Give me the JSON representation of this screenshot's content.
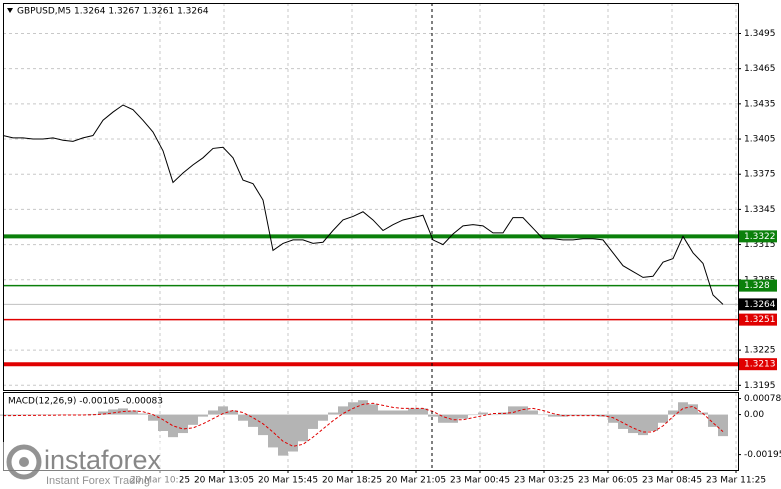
{
  "chart_data": {
    "type": "line",
    "title": "GBPUSD,M5  1.3264 1.3267 1.3261 1.3264",
    "color": "#000000",
    "values": [
      1.3408,
      1.3406,
      1.3406,
      1.3405,
      1.3405,
      1.3406,
      1.3404,
      1.3403,
      1.3406,
      1.3408,
      1.3421,
      1.3428,
      1.3434,
      1.343,
      1.3421,
      1.3411,
      1.3395,
      1.3368,
      1.3376,
      1.3383,
      1.3389,
      1.3397,
      1.3398,
      1.3389,
      1.337,
      1.3367,
      1.3353,
      1.331,
      1.3316,
      1.3319,
      1.3319,
      1.3316,
      1.3317,
      1.3327,
      1.3336,
      1.3339,
      1.3343,
      1.3336,
      1.3327,
      1.3332,
      1.3336,
      1.3338,
      1.334,
      1.3319,
      1.3315,
      1.3324,
      1.3331,
      1.3332,
      1.3331,
      1.3325,
      1.3325,
      1.3338,
      1.3338,
      1.3329,
      1.332,
      1.332,
      1.3319,
      1.3319,
      1.332,
      1.332,
      1.3319,
      1.3308,
      1.3297,
      1.3292,
      1.3287,
      1.3288,
      1.33,
      1.3303,
      1.3322,
      1.3308,
      1.3299,
      1.3272,
      1.3264
    ],
    "x_labels": [
      "20 Mar 10:25",
      "20 Mar 13:05",
      "20 Mar 15:45",
      "20 Mar 18:25",
      "20 Mar 21:05",
      "23 Mar 00:45",
      "23 Mar 03:25",
      "23 Mar 06:05",
      "23 Mar 08:45",
      "23 Mar 11:25"
    ],
    "ylim": [
      1.3191,
      1.3521
    ],
    "yticks": [
      1.3495,
      1.3465,
      1.3435,
      1.3405,
      1.3375,
      1.3345,
      1.3315,
      1.3285,
      1.3225,
      1.3195
    ],
    "grid": true,
    "current_price": 1.3264,
    "levels": [
      {
        "value": 1.3322,
        "color": "#0b800b",
        "style": "thick"
      },
      {
        "value": 1.328,
        "color": "#0b800b",
        "style": "thin"
      },
      {
        "value": 1.3251,
        "color": "#e00000",
        "style": "thin"
      },
      {
        "value": 1.3213,
        "color": "#e00000",
        "style": "thick"
      }
    ],
    "macd": {
      "label": "MACD(12,26,9) -0.00105 -0.00083",
      "histogram_color": "#b4b4b4",
      "signal_color": "#e00000",
      "histogram": [
        -5e-05,
        -4e-05,
        -3e-05,
        -2e-05,
        -1e-05,
        -1e-05,
        -1e-05,
        -2e-05,
        0,
        3e-05,
        0.00015,
        0.00025,
        0.0003,
        0.0002,
        5e-05,
        -0.0003,
        -0.0008,
        -0.0011,
        -0.0009,
        -0.0005,
        -0.0001,
        0.0002,
        0.0004,
        0.0002,
        -0.0003,
        -0.0006,
        -0.001,
        -0.0016,
        -0.002,
        -0.0018,
        -0.0013,
        -0.0007,
        -0.0003,
        0.0001,
        0.0004,
        0.0006,
        0.0007,
        0.0005,
        0.0002,
        0.0002,
        0.0002,
        0.0003,
        0.0003,
        -0.0001,
        -0.0004,
        -0.0004,
        -0.0002,
        0,
        0.0001,
        0,
        0.0001,
        0.0004,
        0.0004,
        0.0002,
        0,
        -0.0001,
        -0.0001,
        -5e-05,
        -5e-05,
        -5e-05,
        -0.0001,
        -0.0004,
        -0.0007,
        -0.0009,
        -0.001,
        -0.0008,
        -0.0004,
        0.0002,
        0.0006,
        0.0005,
        0.0001,
        -0.0006,
        -0.00105
      ],
      "signal": [
        -5e-05,
        -5e-05,
        -4e-05,
        -4e-05,
        -3e-05,
        -3e-05,
        -2e-05,
        -2e-05,
        -2e-05,
        -1e-05,
        2e-05,
        8e-05,
        0.00015,
        0.00018,
        0.00014,
        0,
        -0.00025,
        -0.00055,
        -0.0007,
        -0.00065,
        -0.00045,
        -0.0002,
        5e-05,
        0.0002,
        0.0001,
        -0.00015,
        -0.00045,
        -0.00085,
        -0.0013,
        -0.00155,
        -0.00145,
        -0.0011,
        -0.0007,
        -0.0003,
        5e-05,
        0.0003,
        0.0005,
        0.00055,
        0.00045,
        0.00035,
        0.0003,
        0.0003,
        0.0003,
        0.00015,
        -0.0001,
        -0.00025,
        -0.00025,
        -0.00015,
        -5e-05,
        5e-05,
        5e-05,
        0.0001,
        0.00025,
        0.0003,
        0.0002,
        5e-05,
        -5e-05,
        -5e-05,
        -5e-05,
        -5e-05,
        -5e-05,
        -0.00015,
        -0.0004,
        -0.00065,
        -0.00085,
        -0.00085,
        -0.00055,
        -0.0001,
        0.0003,
        0.0004,
        5e-05,
        -0.0004,
        -0.00083
      ],
      "ylim": [
        -0.0027,
        0.0011
      ],
      "yticks": [
        0.00078,
        {
          "value": 0,
          "label": "0.00"
        },
        -0.00195
      ]
    }
  },
  "watermark": {
    "name": "instaforex",
    "tagline": "Instant Forex Trading"
  }
}
